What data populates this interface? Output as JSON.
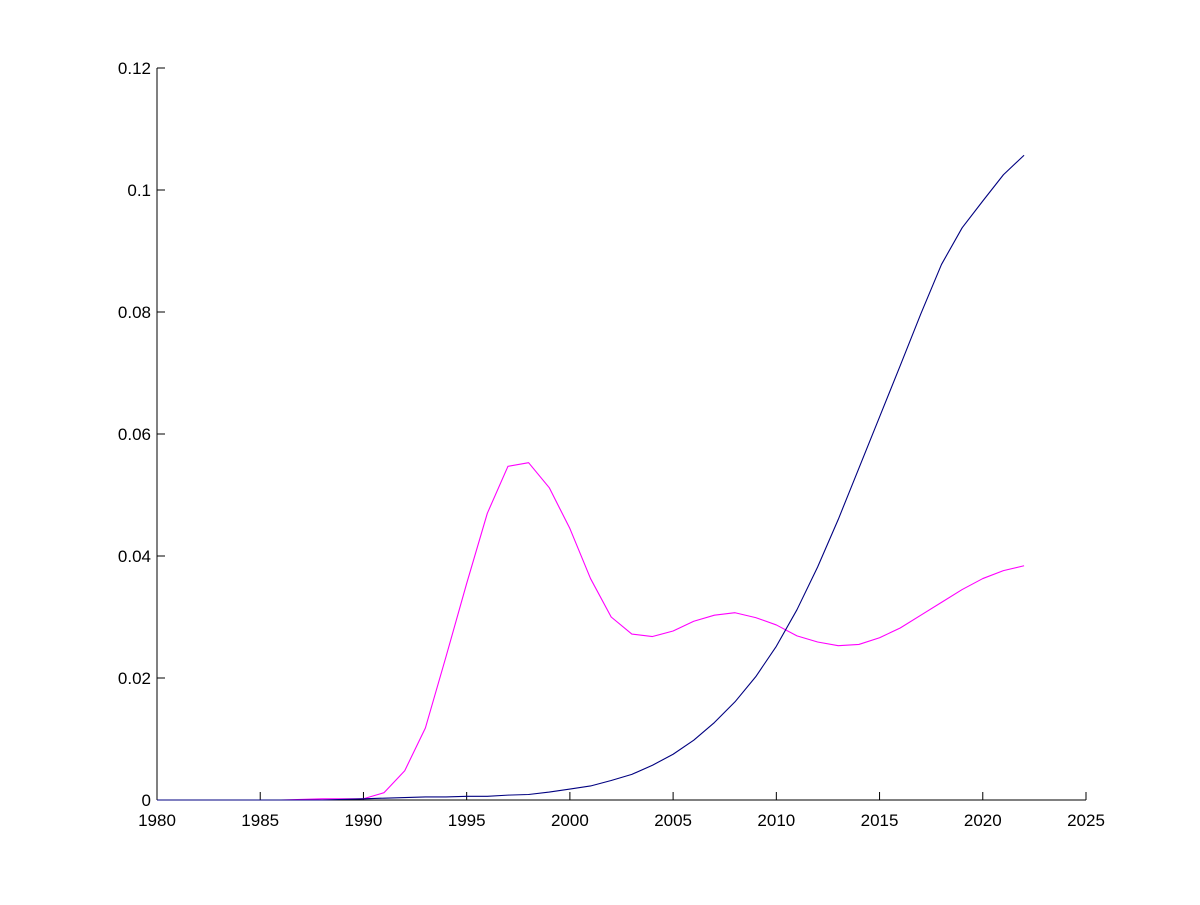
{
  "chart_data": {
    "type": "line",
    "title": "",
    "xlabel": "",
    "ylabel": "",
    "xlim": [
      1980,
      2025
    ],
    "ylim": [
      0,
      0.12
    ],
    "grid": false,
    "x_ticks": [
      "1980",
      "1985",
      "1990",
      "1995",
      "2000",
      "2005",
      "2010",
      "2015",
      "2020",
      "2025"
    ],
    "y_ticks": [
      "0",
      "0.02",
      "0.04",
      "0.06",
      "0.08",
      "0.1",
      "0.12"
    ],
    "x": [
      1980,
      1981,
      1982,
      1983,
      1984,
      1985,
      1986,
      1987,
      1988,
      1989,
      1990,
      1991,
      1992,
      1993,
      1994,
      1995,
      1996,
      1997,
      1998,
      1999,
      2000,
      2001,
      2002,
      2003,
      2004,
      2005,
      2006,
      2007,
      2008,
      2009,
      2010,
      2011,
      2012,
      2013,
      2014,
      2015,
      2016,
      2017,
      2018,
      2019,
      2020,
      2021,
      2022
    ],
    "series": [
      {
        "color": "#ff00ff",
        "values": [
          0,
          0,
          0,
          0,
          0,
          0,
          0,
          0.0001,
          0.0002,
          0.0002,
          0.0002,
          0.0012,
          0.0048,
          0.0118,
          0.0235,
          0.0355,
          0.047,
          0.0547,
          0.0553,
          0.0512,
          0.0445,
          0.0363,
          0.03,
          0.0272,
          0.0268,
          0.0277,
          0.0293,
          0.0303,
          0.0307,
          0.0299,
          0.0287,
          0.0269,
          0.0259,
          0.0253,
          0.0255,
          0.0266,
          0.0282,
          0.0303,
          0.0324,
          0.0345,
          0.0363,
          0.0376,
          0.0384
        ]
      },
      {
        "color": "#000080",
        "values": [
          0,
          0,
          0,
          0,
          0,
          0,
          0,
          0,
          0,
          0.0001,
          0.0002,
          0.0003,
          0.0004,
          0.0005,
          0.0005,
          0.0006,
          0.0006,
          0.0008,
          0.0009,
          0.0013,
          0.0018,
          0.0023,
          0.0032,
          0.0042,
          0.0057,
          0.0075,
          0.0098,
          0.0127,
          0.0161,
          0.0202,
          0.0252,
          0.0312,
          0.0382,
          0.046,
          0.0544,
          0.0628,
          0.0712,
          0.0797,
          0.0878,
          0.0938,
          0.0982,
          0.1025,
          0.1057
        ]
      }
    ]
  }
}
